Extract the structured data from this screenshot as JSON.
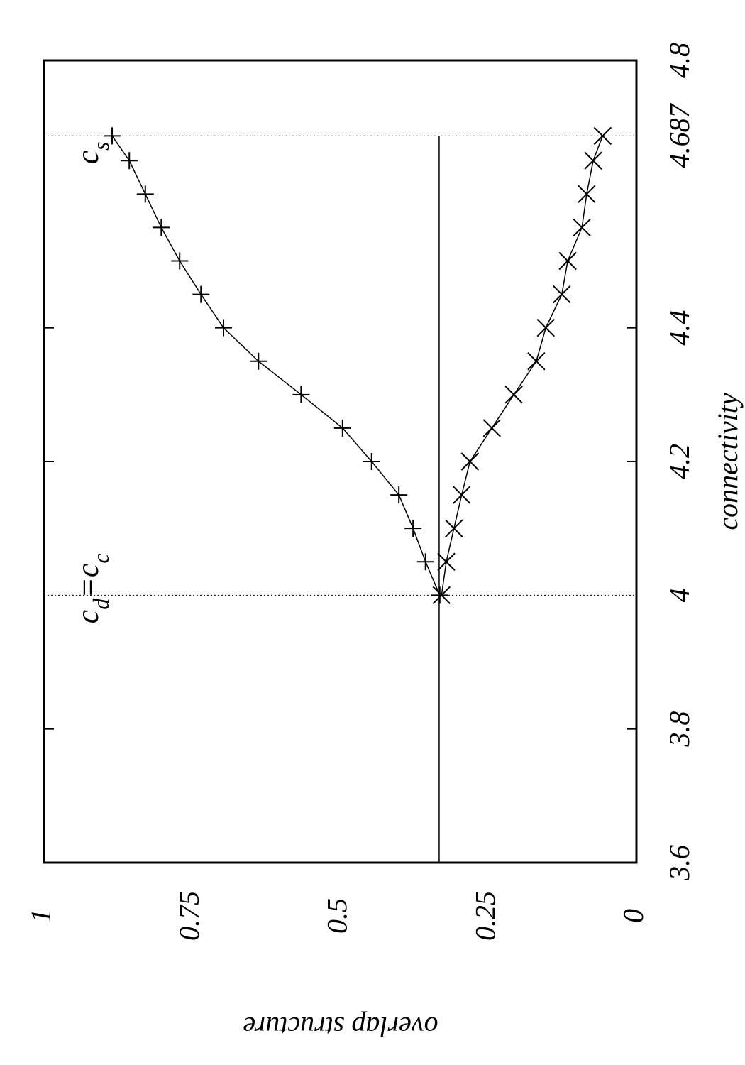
{
  "chart_data": {
    "type": "line",
    "xlabel": "connectivity",
    "ylabel": "overlap structure",
    "xlim": [
      3.6,
      4.8
    ],
    "xticks": [
      3.6,
      3.8,
      4,
      4.2,
      4.4,
      4.687,
      4.8
    ],
    "ylim": [
      0,
      1
    ],
    "yticks": [
      0,
      0.25,
      0.5,
      0.75,
      1
    ],
    "grid": false,
    "series": [
      {
        "marker": "plus",
        "color": "#000",
        "x": [
          4.0,
          4.05,
          4.1,
          4.15,
          4.2,
          4.25,
          4.3,
          4.35,
          4.4,
          4.45,
          4.5,
          4.55,
          4.6,
          4.65,
          4.687
        ],
        "values": [
          0.332,
          0.356,
          0.377,
          0.401,
          0.447,
          0.496,
          0.566,
          0.638,
          0.697,
          0.735,
          0.771,
          0.802,
          0.829,
          0.856,
          0.885
        ]
      },
      {
        "marker": "cross",
        "color": "#000",
        "x": [
          4.0,
          4.05,
          4.1,
          4.15,
          4.2,
          4.25,
          4.3,
          4.35,
          4.4,
          4.45,
          4.5,
          4.55,
          4.6,
          4.65,
          4.687
        ],
        "values": [
          0.329,
          0.321,
          0.308,
          0.295,
          0.281,
          0.244,
          0.207,
          0.169,
          0.153,
          0.126,
          0.116,
          0.092,
          0.084,
          0.073,
          0.057
        ]
      }
    ],
    "reference_line": {
      "value": 0.333,
      "x": [
        3.6,
        4.687
      ]
    },
    "vlines": [
      4,
      4.687
    ],
    "annotations": [
      {
        "x": 4,
        "parts": [
          {
            "text": "c"
          },
          {
            "sub": "d"
          },
          {
            "text": "=c"
          },
          {
            "sub": "c"
          }
        ]
      },
      {
        "x": 4.687,
        "parts": [
          {
            "text": "c"
          },
          {
            "sub": "s"
          }
        ]
      }
    ]
  }
}
